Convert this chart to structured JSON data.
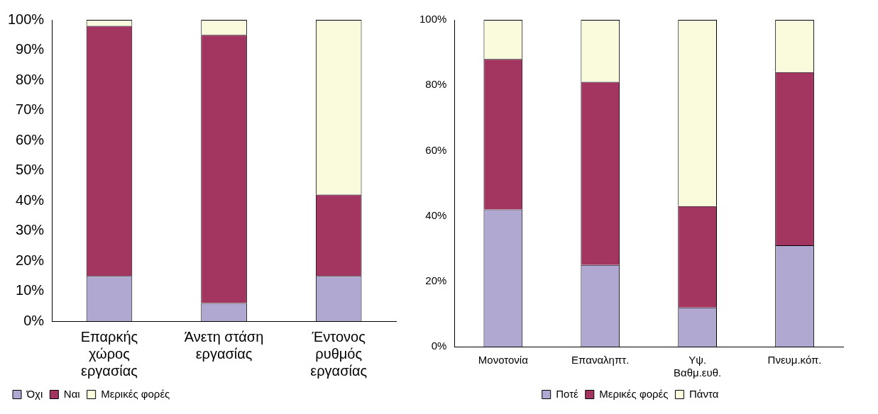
{
  "chart_data": [
    {
      "type": "bar",
      "stacked": true,
      "categories": [
        "Επαρκής χώρος εργασίας",
        "Άνετη στάση εργασίας",
        "Έντονος ρυθμός εργασίας"
      ],
      "series": [
        {
          "name": "Όχι",
          "color": "#b0a8d0",
          "values": [
            15,
            6,
            15
          ]
        },
        {
          "name": "Ναι",
          "color": "#a33561",
          "values": [
            83,
            89,
            27
          ]
        },
        {
          "name": "Μερικές φορές",
          "color": "#fafadc",
          "values": [
            2,
            5,
            58
          ]
        }
      ],
      "ylim": [
        0,
        100
      ],
      "yticks": [
        {
          "value": 0,
          "label": "0%"
        },
        {
          "value": 10,
          "label": "10%"
        },
        {
          "value": 20,
          "label": "20%"
        },
        {
          "value": 30,
          "label": "30%"
        },
        {
          "value": 40,
          "label": "40%"
        },
        {
          "value": 50,
          "label": "50%"
        },
        {
          "value": 60,
          "label": "60%"
        },
        {
          "value": 70,
          "label": "70%"
        },
        {
          "value": 80,
          "label": "80%"
        },
        {
          "value": 90,
          "label": "90%"
        },
        {
          "value": 100,
          "label": "100%"
        }
      ],
      "grid": false,
      "legend": "bottom left"
    },
    {
      "type": "bar",
      "stacked": true,
      "categories": [
        "Μονοτονία",
        "Επαναληπτ.",
        "Υψ. Βαθμ.ευθ.",
        "Πνευμ.κόπ."
      ],
      "series": [
        {
          "name": "Ποτέ",
          "color": "#b0a8d0",
          "values": [
            42,
            25,
            12,
            31
          ]
        },
        {
          "name": "Μερικές φορές",
          "color": "#a33561",
          "values": [
            46,
            56,
            31,
            53
          ]
        },
        {
          "name": "Πάντα",
          "color": "#fafadc",
          "values": [
            12,
            19,
            57,
            16
          ]
        }
      ],
      "ylim": [
        0,
        100
      ],
      "yticks": [
        {
          "value": 0,
          "label": "0%"
        },
        {
          "value": 20,
          "label": "20%"
        },
        {
          "value": 40,
          "label": "40%"
        },
        {
          "value": 60,
          "label": "60%"
        },
        {
          "value": 80,
          "label": "80%"
        },
        {
          "value": 100,
          "label": "100%"
        }
      ],
      "grid": false,
      "legend": "bottom"
    }
  ]
}
